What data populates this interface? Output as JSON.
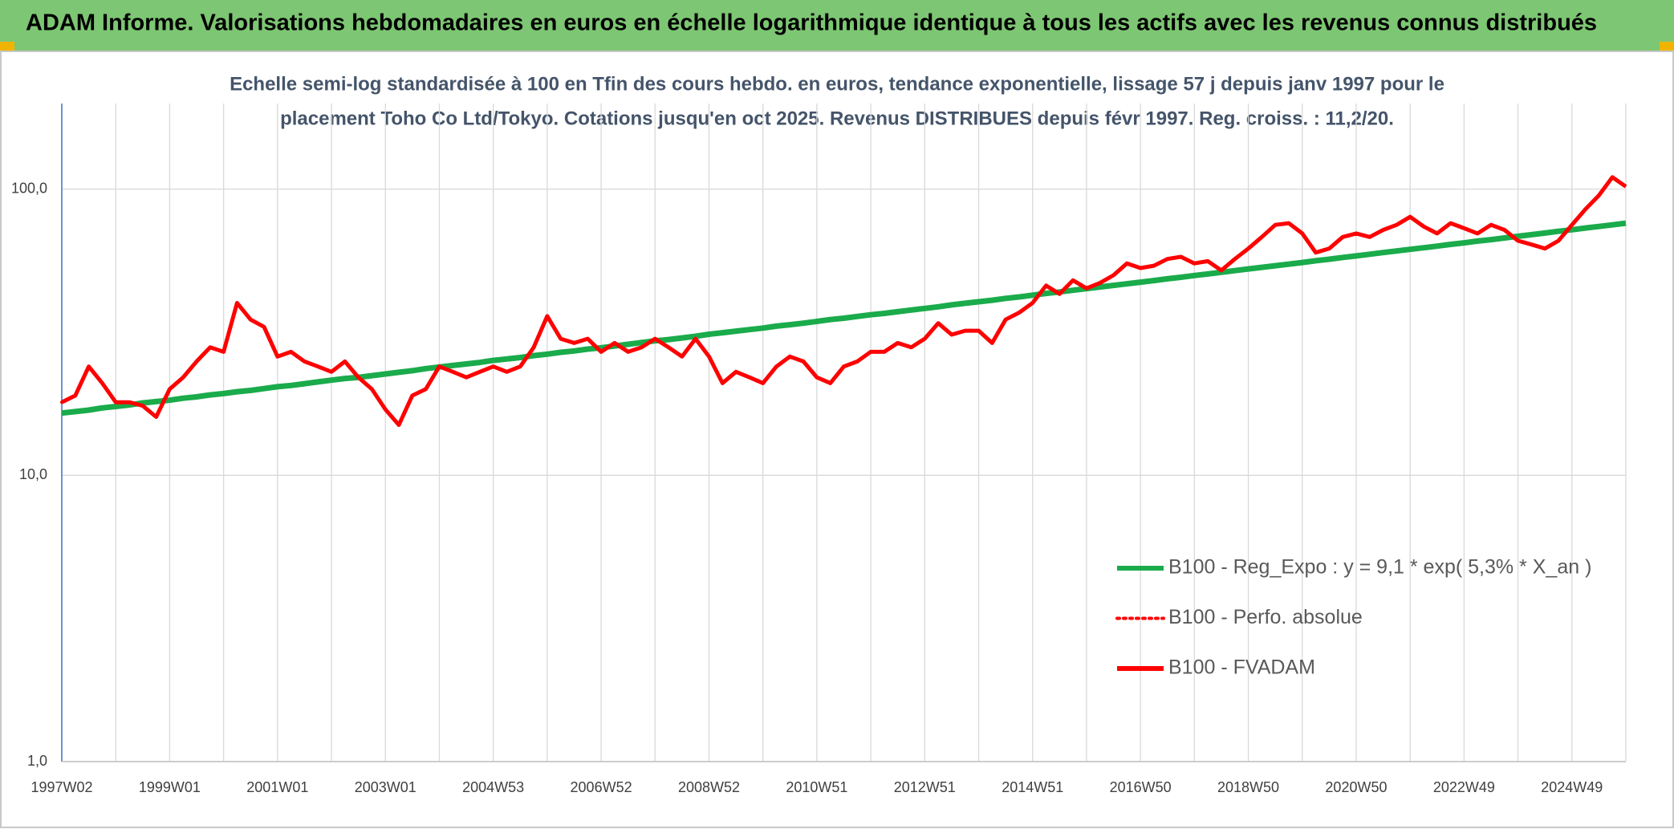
{
  "chart_data": {
    "type": "line",
    "title": "ADAM Informe. Valorisations hebdomadaires en euros en échelle logarithmique identique à tous les actifs avec les revenus connus distribués",
    "subtitle": [
      "Echelle semi-log standardisée à 100 en Tfin des cours hebdo. en euros, tendance exponentielle, lissage 57 j depuis janv 1997 pour le",
      "placement Toho Co Ltd/Tokyo. Cotations jusqu'en oct 2025. Revenus DISTRIBUES depuis févr 1997. Reg. croiss. : 11,2/20."
    ],
    "log_y": true,
    "grid": true,
    "legend": "lower right",
    "ylim": [
      1,
      199
    ],
    "yticks": [
      {
        "value": 1,
        "label": "1,0"
      },
      {
        "value": 10,
        "label": "10,0"
      },
      {
        "value": 100,
        "label": "100,0"
      }
    ],
    "categories": [
      "1997W02",
      null,
      null,
      null,
      null,
      null,
      null,
      null,
      "1999W01",
      null,
      null,
      null,
      null,
      null,
      null,
      null,
      "2001W01",
      null,
      null,
      null,
      null,
      null,
      null,
      null,
      "2003W01",
      null,
      null,
      null,
      null,
      null,
      null,
      null,
      "2004W53",
      null,
      null,
      null,
      null,
      null,
      null,
      null,
      "2006W52",
      null,
      null,
      null,
      null,
      null,
      null,
      null,
      "2008W52",
      null,
      null,
      null,
      null,
      null,
      null,
      null,
      "2010W51",
      null,
      null,
      null,
      null,
      null,
      null,
      null,
      "2012W51",
      null,
      null,
      null,
      null,
      null,
      null,
      null,
      "2014W51",
      null,
      null,
      null,
      null,
      null,
      null,
      null,
      "2016W50",
      null,
      null,
      null,
      null,
      null,
      null,
      null,
      "2018W50",
      null,
      null,
      null,
      null,
      null,
      null,
      null,
      "2020W50",
      null,
      null,
      null,
      null,
      null,
      null,
      null,
      "2022W49",
      null,
      null,
      null,
      null,
      null,
      null,
      null,
      "2024W49",
      null,
      null,
      null,
      null
    ],
    "series": [
      {
        "name": "B100 - Reg_Expo : y = 9,1 * exp( 5,3% *  X_an )",
        "color": "#1aab4b",
        "style": "solid",
        "width": 7,
        "values": [
          16.5,
          16.7,
          16.9,
          17.2,
          17.4,
          17.6,
          17.9,
          18.1,
          18.3,
          18.6,
          18.8,
          19.1,
          19.3,
          19.6,
          19.8,
          20.1,
          20.4,
          20.6,
          20.9,
          21.2,
          21.5,
          21.8,
          22.0,
          22.3,
          22.6,
          22.9,
          23.2,
          23.6,
          23.9,
          24.2,
          24.5,
          24.8,
          25.2,
          25.5,
          25.8,
          26.2,
          26.5,
          26.9,
          27.2,
          27.6,
          27.9,
          28.3,
          28.7,
          29.1,
          29.5,
          29.8,
          30.2,
          30.6,
          31.1,
          31.5,
          31.9,
          32.3,
          32.7,
          33.2,
          33.6,
          34.0,
          34.5,
          35.0,
          35.4,
          35.9,
          36.4,
          36.8,
          37.3,
          37.8,
          38.3,
          38.8,
          39.4,
          39.9,
          40.4,
          40.9,
          41.5,
          42.0,
          42.6,
          43.2,
          43.7,
          44.3,
          44.9,
          45.5,
          46.1,
          46.7,
          47.3,
          47.9,
          48.6,
          49.2,
          49.9,
          50.5,
          51.2,
          51.9,
          52.6,
          53.3,
          54.0,
          54.7,
          55.4,
          56.2,
          56.9,
          57.7,
          58.4,
          59.2,
          60.0,
          60.8,
          61.6,
          62.4,
          63.2,
          64.1,
          64.9,
          65.8,
          66.6,
          67.5,
          68.4,
          69.3,
          70.2,
          71.2,
          72.1,
          73.1,
          74.0,
          75.0,
          76.0
        ]
      },
      {
        "name": "B100 - Perfo. absolue",
        "color": "#ff0000",
        "style": "dotted",
        "width": 4,
        "values": [
          18,
          19,
          24,
          21,
          18,
          18,
          17.5,
          16,
          20,
          22,
          25,
          28,
          27,
          40,
          35,
          33,
          26,
          27,
          25,
          24,
          23,
          25,
          22,
          20,
          17,
          15,
          19,
          20,
          24,
          23,
          22,
          23,
          24,
          23,
          24,
          28,
          36,
          30,
          29,
          30,
          27,
          29,
          27,
          28,
          30,
          28,
          26,
          30,
          26,
          21,
          23,
          22,
          21,
          24,
          26,
          25,
          22,
          21,
          24,
          25,
          27,
          27,
          29,
          28,
          30,
          34,
          31,
          32,
          32,
          29,
          35,
          37,
          40,
          46,
          43,
          48,
          45,
          47,
          50,
          55,
          53,
          54,
          57,
          58,
          55,
          56,
          52,
          57,
          62,
          68,
          75,
          76,
          70,
          60,
          62,
          68,
          70,
          68,
          72,
          75,
          80,
          74,
          70,
          76,
          73,
          70,
          75,
          72,
          66,
          64,
          62,
          66,
          75,
          85,
          95,
          110,
          102
        ]
      },
      {
        "name": "B100 - FVADAM",
        "color": "#ff0000",
        "style": "solid",
        "width": 5,
        "values": [
          18,
          19,
          24,
          21,
          18,
          18,
          17.5,
          16,
          20,
          22,
          25,
          28,
          27,
          40,
          35,
          33,
          26,
          27,
          25,
          24,
          23,
          25,
          22,
          20,
          17,
          15,
          19,
          20,
          24,
          23,
          22,
          23,
          24,
          23,
          24,
          28,
          36,
          30,
          29,
          30,
          27,
          29,
          27,
          28,
          30,
          28,
          26,
          30,
          26,
          21,
          23,
          22,
          21,
          24,
          26,
          25,
          22,
          21,
          24,
          25,
          27,
          27,
          29,
          28,
          30,
          34,
          31,
          32,
          32,
          29,
          35,
          37,
          40,
          46,
          43,
          48,
          45,
          47,
          50,
          55,
          53,
          54,
          57,
          58,
          55,
          56,
          52,
          57,
          62,
          68,
          75,
          76,
          70,
          60,
          62,
          68,
          70,
          68,
          72,
          75,
          80,
          74,
          70,
          76,
          73,
          70,
          75,
          72,
          66,
          64,
          62,
          66,
          75,
          85,
          95,
          110,
          102
        ]
      }
    ]
  }
}
